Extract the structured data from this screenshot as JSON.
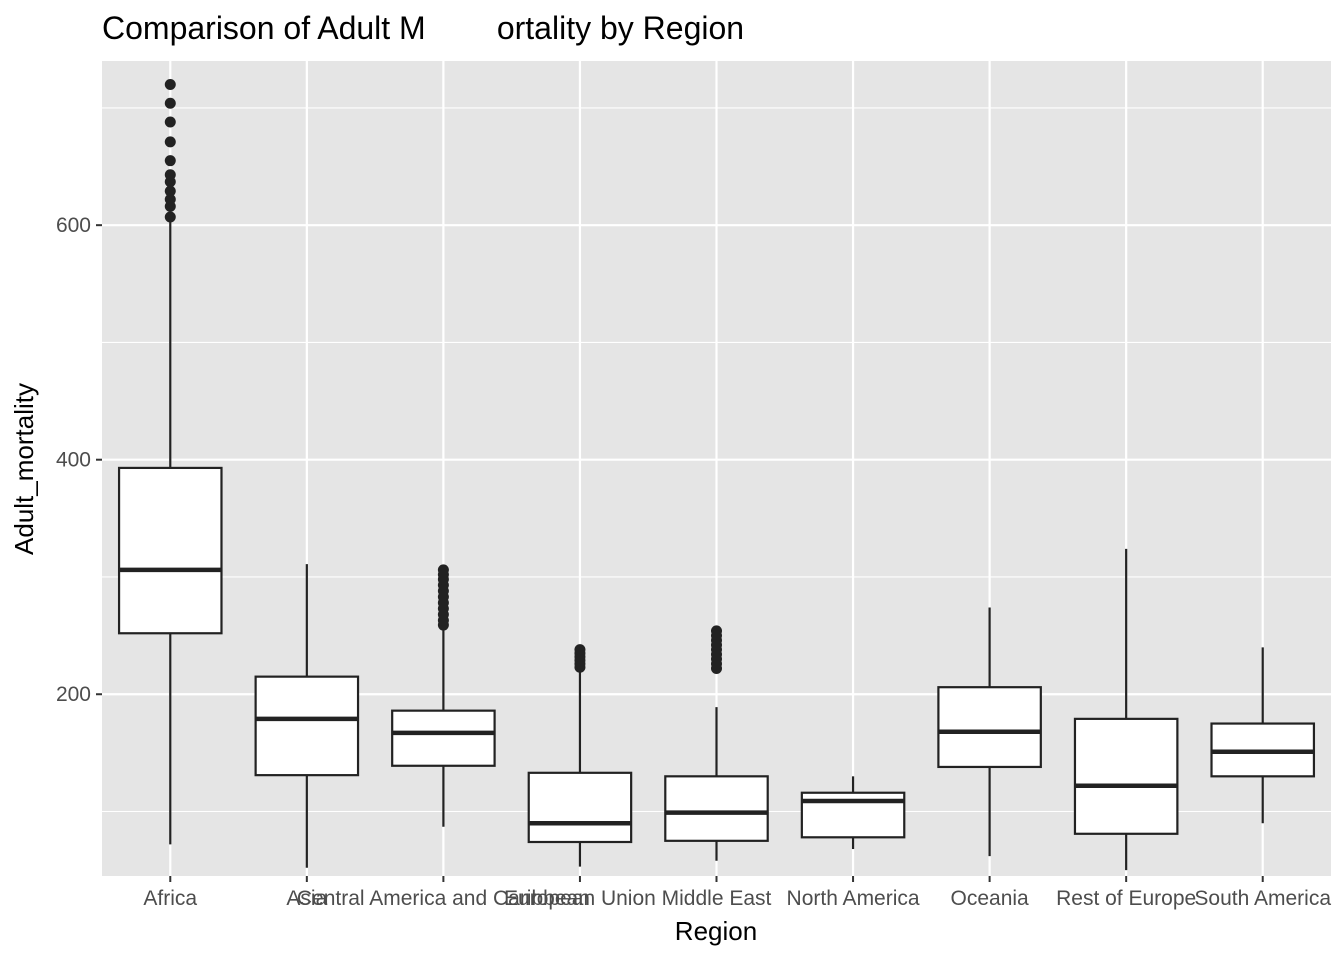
{
  "chart_data": {
    "type": "boxplot",
    "title": "Comparison of Adult M        ortality by Region",
    "xlabel": "Region",
    "ylabel": "Adult_mortality",
    "ylim": [
      45,
      740
    ],
    "y_ticks": [
      200,
      400,
      600
    ],
    "grid": true,
    "legend": "none",
    "colors": {
      "panel": "#e5e5e5",
      "grid": "#ffffff",
      "box_fill": "#ffffff",
      "line": "#222222",
      "tick_text": "#4d4d4d"
    },
    "categories": [
      "Africa",
      "Asia",
      "Central America and Caribbean",
      "European Union",
      "Middle East",
      "North America",
      "Oceania",
      "Rest of Europe",
      "South America"
    ],
    "boxes": [
      {
        "category": "Africa",
        "whisker_low": 72,
        "q1": 252,
        "median": 306,
        "q3": 393,
        "whisker_high": 604,
        "outliers": [
          607,
          616,
          622,
          629,
          637,
          643,
          655,
          671,
          688,
          704,
          720
        ]
      },
      {
        "category": "Asia",
        "whisker_low": 52,
        "q1": 131,
        "median": 179,
        "q3": 215,
        "whisker_high": 311,
        "outliers": []
      },
      {
        "category": "Central America and Caribbean",
        "whisker_low": 87,
        "q1": 139,
        "median": 167,
        "q3": 186,
        "whisker_high": 257,
        "outliers": [
          259,
          263,
          268,
          273,
          278,
          283,
          288,
          293,
          298,
          302,
          306
        ]
      },
      {
        "category": "European Union",
        "whisker_low": 53,
        "q1": 74,
        "median": 90,
        "q3": 133,
        "whisker_high": 220,
        "outliers": [
          223,
          226,
          229,
          232,
          235,
          238
        ]
      },
      {
        "category": "Middle East",
        "whisker_low": 58,
        "q1": 75,
        "median": 99,
        "q3": 130,
        "whisker_high": 189,
        "outliers": [
          222,
          226,
          230,
          234,
          238,
          242,
          246,
          250,
          254
        ]
      },
      {
        "category": "North America",
        "whisker_low": 68,
        "q1": 78,
        "median": 109,
        "q3": 116,
        "whisker_high": 130,
        "outliers": []
      },
      {
        "category": "Oceania",
        "whisker_low": 62,
        "q1": 138,
        "median": 168,
        "q3": 206,
        "whisker_high": 274,
        "outliers": []
      },
      {
        "category": "Rest of Europe",
        "whisker_low": 50,
        "q1": 81,
        "median": 122,
        "q3": 179,
        "whisker_high": 324,
        "outliers": []
      },
      {
        "category": "South America",
        "whisker_low": 90,
        "q1": 130,
        "median": 151,
        "q3": 175,
        "whisker_high": 240,
        "outliers": []
      }
    ]
  }
}
